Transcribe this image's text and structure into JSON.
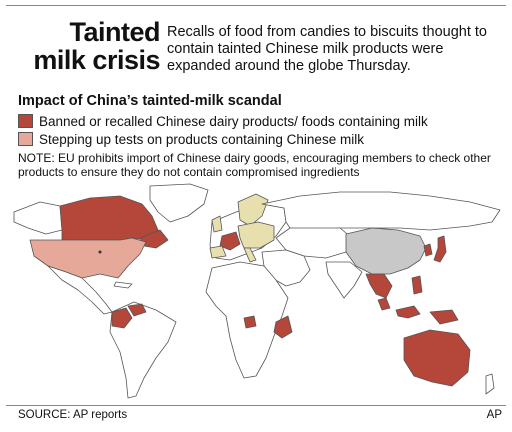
{
  "header": {
    "title_line1": "Tainted",
    "title_line2": "milk crisis",
    "dek": "Recalls of food from candies to biscuits thought to contain tainted Chinese milk products were expanded around the globe Thursday."
  },
  "legend": {
    "heading": "Impact of China’s tainted-milk scandal",
    "items": [
      {
        "label": "Banned or recalled Chinese dairy products/ foods containing milk",
        "color": "#b5473a"
      },
      {
        "label": "Stepping up tests on products containing Chinese milk",
        "color": "#e6a898"
      }
    ]
  },
  "note": "NOTE: EU prohibits import of Chinese dairy goods, encouraging members to check other products to ensure they do not contain compromised ingredients",
  "map_colors": {
    "banned": "#b5473a",
    "testing": "#e6a898",
    "eu": "#e8dfae",
    "china": "#c8c8c8",
    "land": "#ffffff",
    "ocean": "#ffffff",
    "border": "#555555"
  },
  "footer": {
    "source": "SOURCE: AP reports",
    "credit": "AP"
  }
}
